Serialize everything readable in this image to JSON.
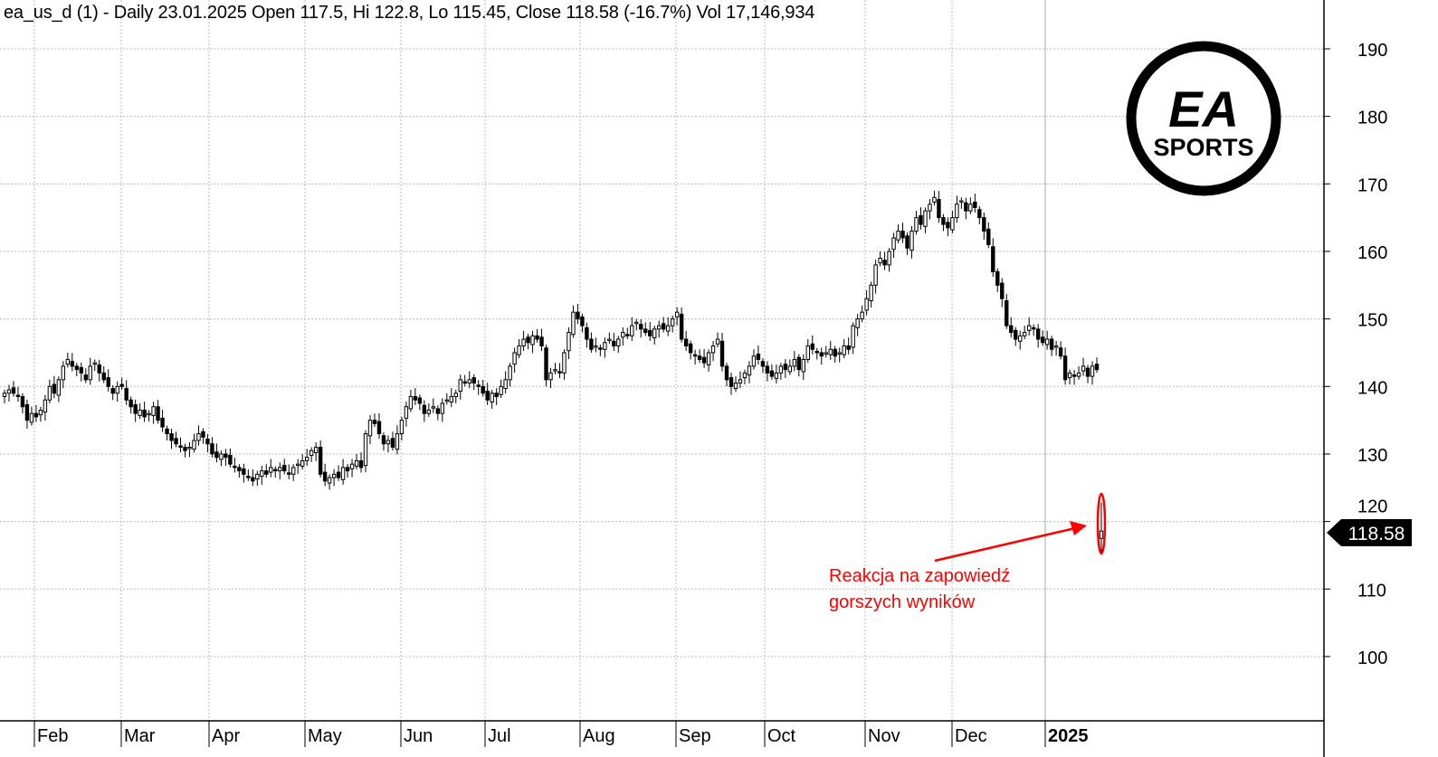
{
  "header": {
    "title": "ea_us_d (1) - Daily 23.01.2025 Open 117.5, Hi 122.8, Lo 115.45, Close 118.58 (-16.7%) Vol 17,146,934"
  },
  "logo": {
    "line1": "EA",
    "line2": "SPORTS"
  },
  "annotation": {
    "line1": "Reakcja na zapowiedź",
    "line2": "gorszych wyników",
    "color": "#ff0000"
  },
  "chart_data": {
    "type": "candlestick",
    "title": "ea_us_d (1) - Daily",
    "ylim": [
      95,
      195
    ],
    "y_ticks": [
      100,
      110,
      120,
      130,
      140,
      150,
      160,
      170,
      180,
      190
    ],
    "x_ticks": [
      "Feb",
      "Mar",
      "Apr",
      "May",
      "Jun",
      "Jul",
      "Aug",
      "Sep",
      "Oct",
      "Nov",
      "Dec",
      "2025"
    ],
    "grid": true,
    "axis_position": "right",
    "last_price_label": "118.58",
    "daily_closes_approx": [
      139,
      139.5,
      139,
      138.5,
      137,
      135,
      136,
      135.5,
      136.5,
      138,
      140,
      139,
      141,
      143,
      144,
      143,
      142.5,
      142,
      141,
      143,
      143.5,
      142,
      141,
      140,
      139,
      140,
      140,
      138,
      137,
      136,
      136.5,
      135.5,
      136,
      137,
      135,
      134,
      133,
      132,
      131.5,
      131,
      130.5,
      131,
      132,
      133,
      132.5,
      131.5,
      130,
      129.5,
      130,
      129.5,
      128.5,
      128,
      127.5,
      127,
      126.5,
      126,
      127,
      127.5,
      127,
      128,
      127.5,
      128,
      127.5,
      127,
      128,
      128.5,
      129,
      129.5,
      130.5,
      131,
      127,
      126,
      126.5,
      127,
      126.5,
      128,
      127.5,
      128.5,
      129,
      128,
      133,
      135,
      134.5,
      133,
      131.5,
      132,
      131,
      133,
      135,
      137,
      138.5,
      138,
      137.5,
      136,
      136.5,
      137,
      136,
      137.5,
      138,
      138.5,
      139,
      141,
      140.5,
      141,
      140.5,
      140,
      139,
      138,
      139,
      138.5,
      140,
      141,
      143,
      145,
      146,
      147,
      146.5,
      147.5,
      147,
      146,
      141,
      142,
      142.5,
      142,
      145,
      148,
      151,
      150,
      149,
      147,
      145.5,
      146,
      145.5,
      146.5,
      147,
      146,
      147,
      148,
      147.5,
      149,
      149.5,
      148.5,
      148,
      147.5,
      148.5,
      149,
      148.5,
      149,
      150,
      151,
      147,
      146,
      145,
      144.5,
      144,
      143.5,
      145,
      146,
      147,
      143,
      141,
      140,
      140.5,
      141,
      142,
      143,
      144.5,
      144,
      143,
      142,
      141.5,
      142,
      143,
      142.5,
      143,
      144,
      142.5,
      144,
      146,
      145.5,
      145,
      144.5,
      145,
      145.5,
      144.5,
      145,
      146,
      145.5,
      149,
      150,
      151,
      153,
      155,
      158,
      159,
      158,
      160,
      162,
      163,
      162,
      160.5,
      163,
      165,
      164,
      166,
      167,
      168,
      165,
      164,
      163.5,
      165,
      167,
      167.5,
      166,
      167,
      166.5,
      165,
      163,
      161,
      157,
      155,
      153,
      149,
      148,
      147,
      147.5,
      148,
      149,
      148.5,
      147,
      146.5,
      147,
      145.5,
      146,
      144.5,
      141,
      142,
      141.5,
      142,
      143,
      141.5,
      143,
      142.5
    ],
    "last_candle": {
      "date": "23.01.2025",
      "open": 117.5,
      "high": 122.8,
      "low": 115.45,
      "close": 118.58,
      "change_pct": -16.7,
      "volume": 17146934
    }
  }
}
